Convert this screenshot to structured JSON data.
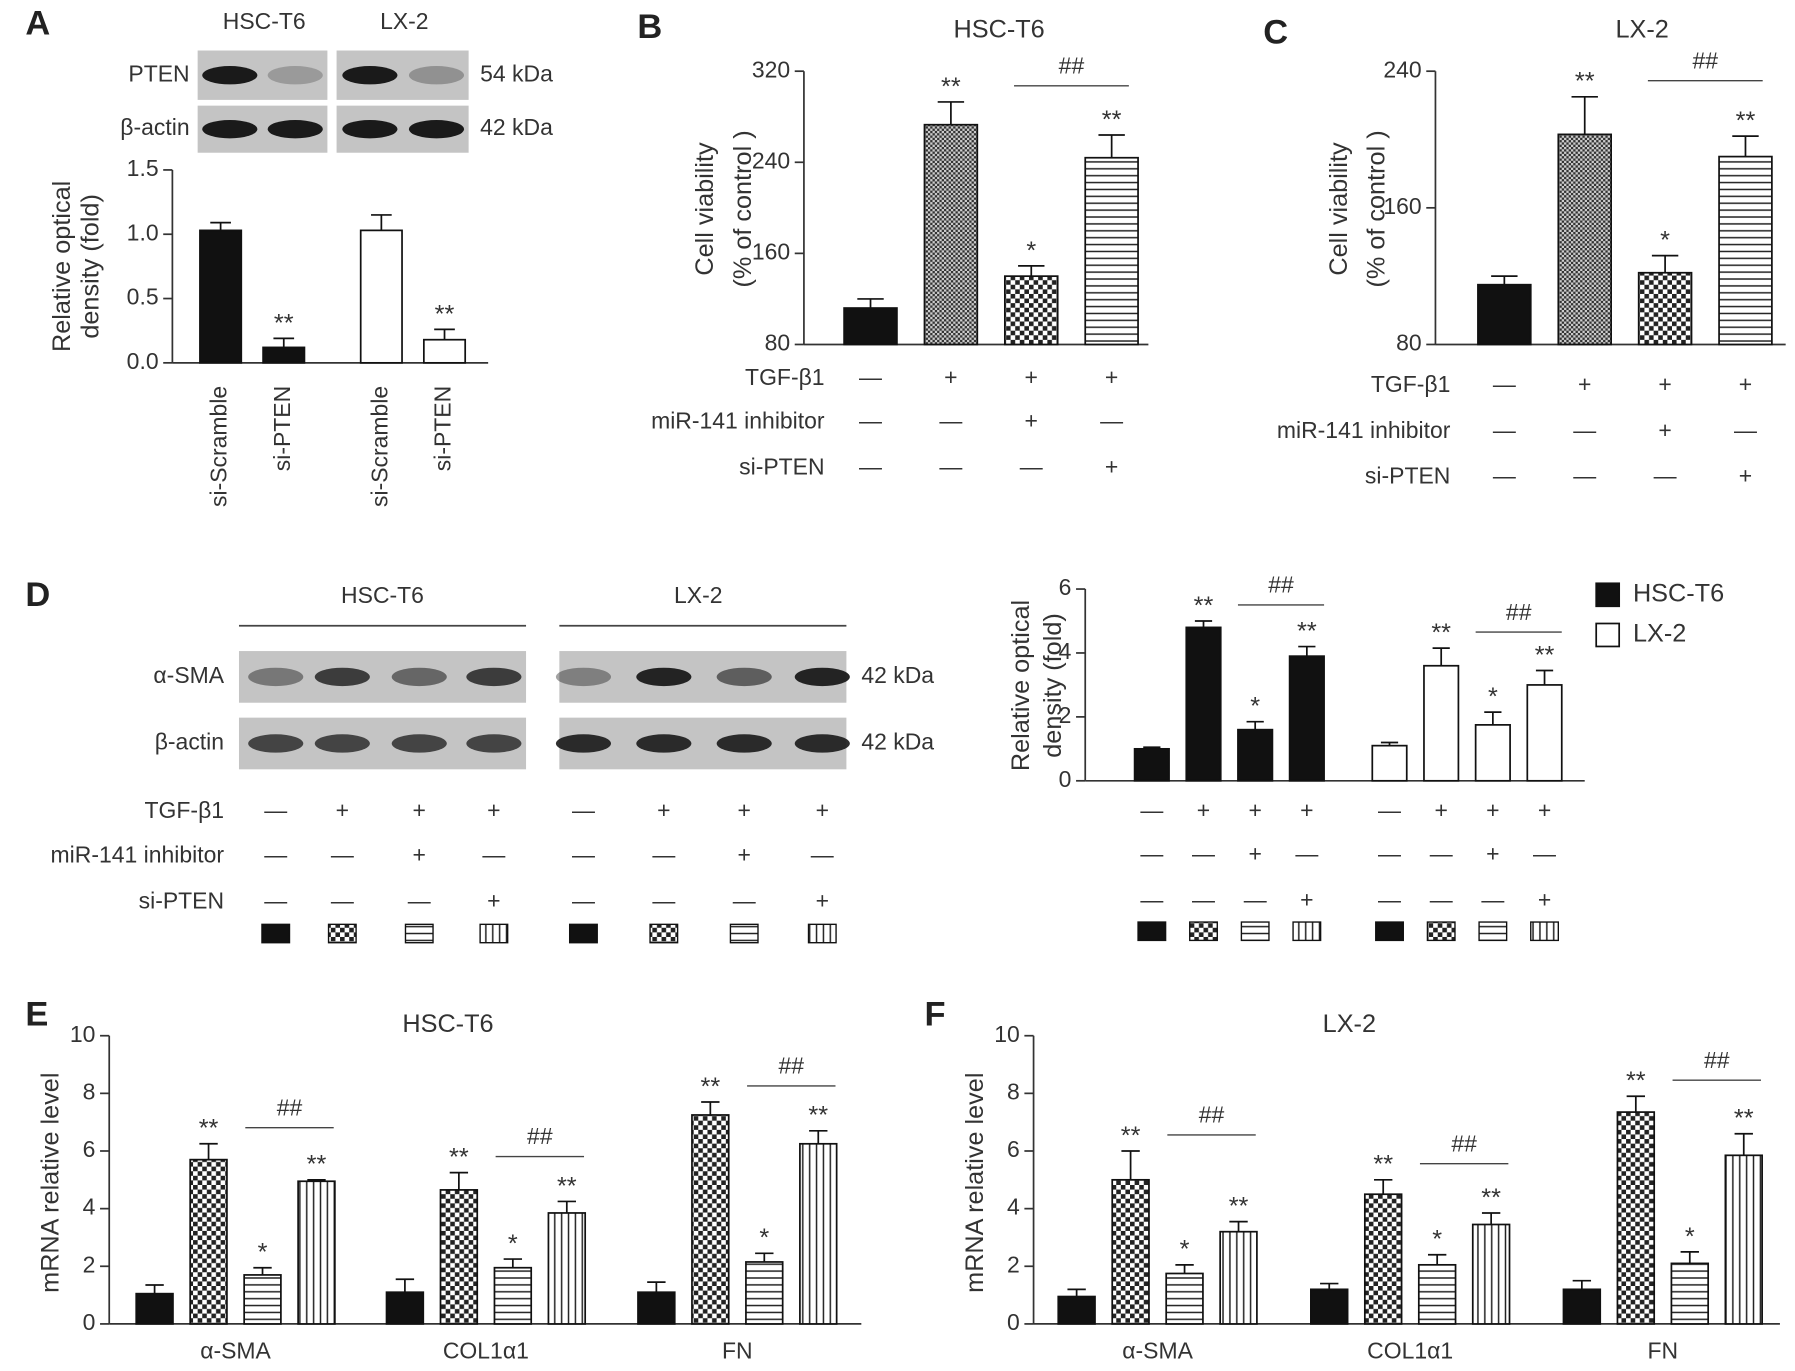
{
  "chart_data": [
    {
      "type": "bar",
      "label": "A",
      "ylabel": [
        "Relative optical",
        "density (fold)"
      ],
      "categories": [
        "si-Scramble",
        "si-PTEN",
        "si-Scramble",
        "si-PTEN"
      ],
      "ylim": [
        0,
        1.5
      ],
      "yticks": [
        {
          "value": 0,
          "label": "0.0"
        },
        0.5,
        {
          "value": 1,
          "label": "1.0"
        },
        1.5
      ],
      "series": [
        {
          "values": [
            1.03,
            0.12,
            1.03,
            0.18
          ],
          "errors": [
            0.06,
            0.07,
            0.12,
            0.08
          ],
          "significance": [
            null,
            "**",
            null,
            "**"
          ],
          "colors": [
            "#111111",
            "#111111",
            "#ffffff",
            "#ffffff"
          ]
        }
      ]
    },
    {
      "type": "bar",
      "label": "B",
      "title": "HSC-T6",
      "ylabel": [
        "Cell viability",
        "(% of control )"
      ],
      "ylim": [
        80,
        320
      ],
      "yticks": [
        80,
        160,
        240,
        320
      ],
      "series": [
        {
          "values": [
            112,
            273,
            140,
            244
          ],
          "errors": [
            8,
            20,
            9,
            20
          ],
          "significance": [
            null,
            "**",
            "*",
            "**"
          ],
          "patterns": [
            "solid",
            "dots",
            "checker",
            "hlines"
          ]
        }
      ],
      "comparisons": [
        "##"
      ],
      "conditions": [
        {
          "label": "TGF-β1",
          "signs": [
            "—",
            "+",
            "+",
            "+"
          ]
        },
        {
          "label": "miR-141 inhibitor",
          "signs": [
            "—",
            "—",
            "+",
            "—"
          ]
        },
        {
          "label": "si-PTEN",
          "signs": [
            "—",
            "—",
            "—",
            "+"
          ]
        }
      ]
    },
    {
      "type": "bar",
      "label": "C",
      "title": "LX-2",
      "ylabel": [
        "Cell viability",
        "(% of control )"
      ],
      "ylim": [
        80,
        240
      ],
      "yticks": [
        80,
        160,
        240
      ],
      "series": [
        {
          "values": [
            115,
            203,
            122,
            190
          ],
          "errors": [
            5,
            22,
            10,
            12
          ],
          "significance": [
            null,
            "**",
            "*",
            "**"
          ],
          "patterns": [
            "solid",
            "dots",
            "checker",
            "hlines"
          ]
        }
      ],
      "comparisons": [
        "##"
      ],
      "conditions": [
        {
          "label": "TGF-β1",
          "signs": [
            "—",
            "+",
            "+",
            "+"
          ]
        },
        {
          "label": "miR-141 inhibitor",
          "signs": [
            "—",
            "—",
            "+",
            "—"
          ]
        },
        {
          "label": "si-PTEN",
          "signs": [
            "—",
            "—",
            "—",
            "+"
          ]
        }
      ]
    },
    {
      "type": "bar",
      "ylabel": [
        "Relative optical",
        "density (fold)"
      ],
      "ylim": [
        0,
        6
      ],
      "yticks": [
        0,
        2,
        4,
        6
      ],
      "legend": "right",
      "series": [
        {
          "name": "HSC-T6",
          "color": "#111111",
          "values": [
            1.0,
            4.8,
            1.6,
            3.9
          ],
          "errors": [
            0.05,
            0.2,
            0.25,
            0.3
          ],
          "significance": [
            null,
            "**",
            "*",
            "**"
          ]
        },
        {
          "name": "LX-2",
          "color": "#ffffff",
          "values": [
            1.1,
            3.6,
            1.75,
            3.0
          ],
          "errors": [
            0.1,
            0.55,
            0.4,
            0.45
          ],
          "significance": [
            null,
            "**",
            "*",
            "**"
          ]
        }
      ],
      "comparisons": [
        "##",
        "##"
      ],
      "conditions": [
        {
          "signs": [
            "—",
            "+",
            "+",
            "+",
            "—",
            "+",
            "+",
            "+"
          ]
        },
        {
          "signs": [
            "—",
            "—",
            "+",
            "—",
            "—",
            "—",
            "+",
            "—"
          ]
        },
        {
          "signs": [
            "—",
            "—",
            "—",
            "+",
            "—",
            "—",
            "—",
            "+"
          ]
        }
      ]
    },
    {
      "type": "bar",
      "label": "E",
      "title": "HSC-T6",
      "ylabel": [
        "mRNA relative level"
      ],
      "categories": [
        "α-SMA",
        "COL1α1",
        "FN"
      ],
      "ylim": [
        0,
        10
      ],
      "yticks": [
        0,
        2,
        4,
        6,
        8,
        10
      ],
      "series": [
        {
          "pattern": "solid",
          "values": [
            1.05,
            1.1,
            1.1
          ],
          "errors": [
            0.3,
            0.45,
            0.35
          ],
          "significance": [
            null,
            null,
            null
          ]
        },
        {
          "pattern": "checker",
          "values": [
            5.7,
            4.65,
            7.25
          ],
          "errors": [
            0.55,
            0.6,
            0.45
          ],
          "significance": [
            "**",
            "**",
            "**"
          ]
        },
        {
          "pattern": "hlines",
          "values": [
            1.7,
            1.95,
            2.15
          ],
          "errors": [
            0.25,
            0.3,
            0.3
          ],
          "significance": [
            "*",
            "*",
            "*"
          ]
        },
        {
          "pattern": "vlines",
          "values": [
            4.95,
            3.85,
            6.25
          ],
          "errors": [
            0.05,
            0.4,
            0.45
          ],
          "significance": [
            "**",
            "**",
            "**"
          ]
        }
      ],
      "comparisons": [
        "##",
        "##",
        "##"
      ]
    },
    {
      "type": "bar",
      "label": "F",
      "title": "LX-2",
      "ylabel": [
        "mRNA relative level"
      ],
      "categories": [
        "α-SMA",
        "COL1α1",
        "FN"
      ],
      "ylim": [
        0,
        10
      ],
      "yticks": [
        0,
        2,
        4,
        6,
        8,
        10
      ],
      "series": [
        {
          "pattern": "solid",
          "values": [
            0.95,
            1.2,
            1.2
          ],
          "errors": [
            0.25,
            0.2,
            0.3
          ],
          "significance": [
            null,
            null,
            null
          ]
        },
        {
          "pattern": "checker",
          "values": [
            5.0,
            4.5,
            7.35
          ],
          "errors": [
            1.0,
            0.5,
            0.55
          ],
          "significance": [
            "**",
            "**",
            "**"
          ]
        },
        {
          "pattern": "hlines",
          "values": [
            1.75,
            2.05,
            2.1
          ],
          "errors": [
            0.3,
            0.35,
            0.4
          ],
          "significance": [
            "*",
            "*",
            "*"
          ]
        },
        {
          "pattern": "vlines",
          "values": [
            3.2,
            3.45,
            5.85
          ],
          "errors": [
            0.35,
            0.4,
            0.75
          ],
          "significance": [
            "**",
            "**",
            "**"
          ]
        }
      ],
      "comparisons": [
        "##",
        "##",
        "##"
      ]
    }
  ],
  "blots": [
    {
      "groups": [
        "HSC-T6",
        "LX-2"
      ],
      "rows": [
        {
          "name": "PTEN",
          "size": "54 kDa"
        },
        {
          "name": "β-actin",
          "size": "42 kDa"
        }
      ]
    },
    {
      "label": "D",
      "groups": [
        "HSC-T6",
        "LX-2"
      ],
      "rows": [
        {
          "name": "α-SMA",
          "size": "42 kDa"
        },
        {
          "name": "β-actin",
          "size": "42 kDa"
        }
      ],
      "conditions": [
        {
          "label": "TGF-β1",
          "signs": [
            "—",
            "+",
            "+",
            "+",
            "—",
            "+",
            "+",
            "+"
          ]
        },
        {
          "label": "miR-141 inhibitor",
          "signs": [
            "—",
            "—",
            "+",
            "—",
            "—",
            "—",
            "+",
            "—"
          ]
        },
        {
          "label": "si-PTEN",
          "signs": [
            "—",
            "—",
            "—",
            "+",
            "—",
            "—",
            "—",
            "+"
          ]
        }
      ]
    }
  ]
}
